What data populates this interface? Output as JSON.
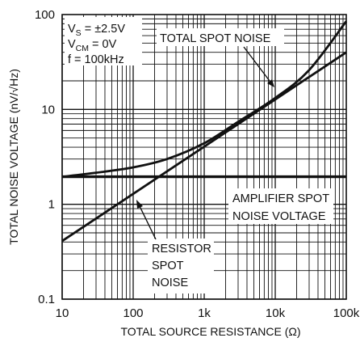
{
  "chart_data": {
    "type": "line",
    "title": "",
    "xlabel": "TOTAL SOURCE RESISTANCE (Ω)",
    "ylabel": "TOTAL NOISE VOLTAGE (nV/√Hz)",
    "x_scale": "log",
    "y_scale": "log",
    "xlim": [
      10,
      100000
    ],
    "ylim": [
      0.1,
      100
    ],
    "grid": true,
    "x_ticks": [
      "10",
      "100",
      "1k",
      "10k",
      "100k"
    ],
    "y_ticks": [
      "0.1",
      "1",
      "10",
      "100"
    ],
    "conditions": {
      "vs_main": "V",
      "vs_sub": "S",
      "vs_rest": " = ±2.5V",
      "vcm_main": "V",
      "vcm_sub": "CM",
      "vcm_rest": " = 0V",
      "freq": "f = 100kHz"
    },
    "series": [
      {
        "name": "TOTAL SPOT NOISE",
        "x": [
          10,
          30,
          100,
          300,
          1000,
          3000,
          10000,
          30000,
          100000
        ],
        "y": [
          1.95,
          2.15,
          2.45,
          3.0,
          4.4,
          7.4,
          13.2,
          26.0,
          85.0
        ]
      },
      {
        "name": "AMPLIFIER SPOT NOISE VOLTAGE",
        "x": [
          10,
          100000
        ],
        "y": [
          1.95,
          1.95
        ]
      },
      {
        "name": "RESISTOR SPOT NOISE",
        "x": [
          10,
          100000
        ],
        "y": [
          0.41,
          40.0
        ]
      }
    ],
    "annotations": {
      "total_spot_noise": [
        "TOTAL SPOT NOISE"
      ],
      "amplifier_spot_noise": [
        "AMPLIFIER SPOT",
        "NOISE VOLTAGE"
      ],
      "resistor_spot_noise": [
        "RESISTOR",
        "SPOT",
        "NOISE"
      ]
    }
  }
}
